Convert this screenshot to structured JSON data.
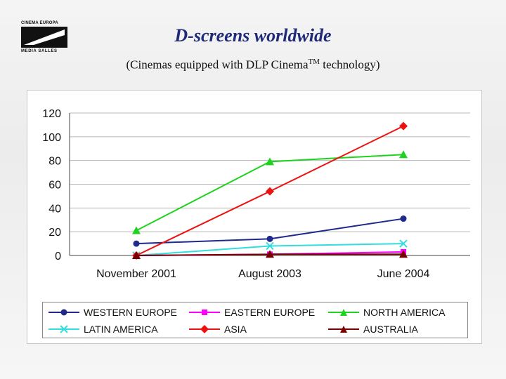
{
  "logo": {
    "top_text": "CINEMA EUROPA",
    "bottom_text": "MEDIA SALLES"
  },
  "header": {
    "title": "D-screens worldwide",
    "subtitle_before": "(Cinemas equipped with DLP Cinema",
    "subtitle_sup": "TM",
    "subtitle_after": " technology)"
  },
  "chart_data": {
    "type": "line",
    "title": "",
    "xlabel": "",
    "ylabel": "",
    "categories": [
      "November 2001",
      "August 2003",
      "June 2004"
    ],
    "ylim": [
      0,
      120
    ],
    "yticks": [
      0,
      20,
      40,
      60,
      80,
      100,
      120
    ],
    "grid": true,
    "legend_placement": "bottom",
    "series": [
      {
        "name": "WESTERN EUROPE",
        "values": [
          10,
          14,
          31
        ],
        "color": "#1f2a8a",
        "marker": "circle"
      },
      {
        "name": "EASTERN EUROPE",
        "values": [
          0,
          1,
          3
        ],
        "color": "#ff00ff",
        "marker": "square"
      },
      {
        "name": "NORTH AMERICA",
        "values": [
          21,
          79,
          85
        ],
        "color": "#1ed31e",
        "marker": "triangle"
      },
      {
        "name": "LATIN AMERICA",
        "values": [
          0,
          8,
          10
        ],
        "color": "#33dddd",
        "marker": "x"
      },
      {
        "name": "ASIA",
        "values": [
          0,
          54,
          109
        ],
        "color": "#ee1111",
        "marker": "diamond"
      },
      {
        "name": "AUSTRALIA",
        "values": [
          0,
          1,
          1
        ],
        "color": "#7a0000",
        "marker": "triangle"
      }
    ]
  }
}
